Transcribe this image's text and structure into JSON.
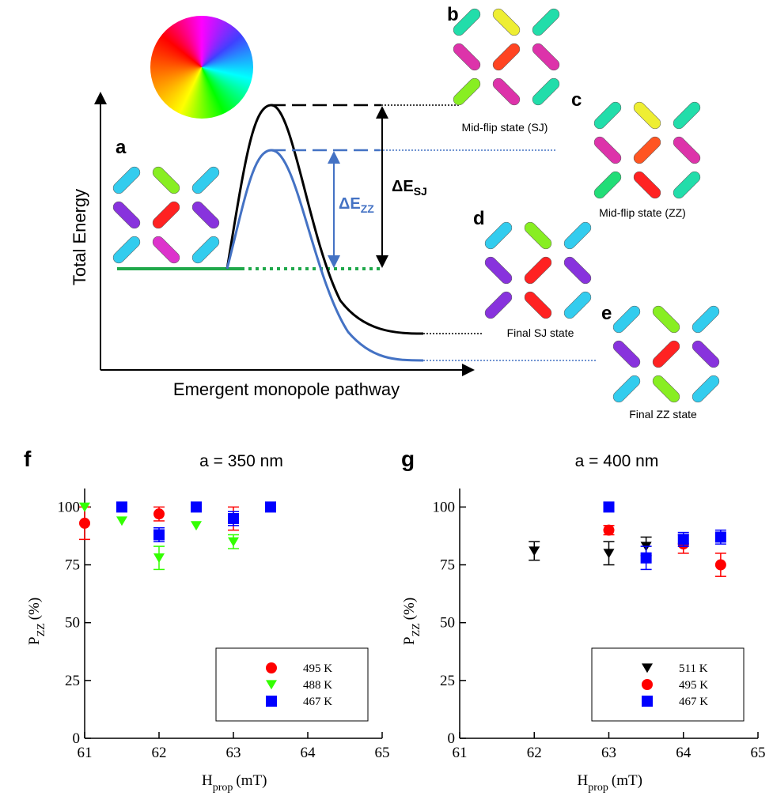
{
  "diagram": {
    "panel_labels": [
      "a",
      "b",
      "c",
      "d",
      "e"
    ],
    "y_axis_label": "Total Energy",
    "x_axis_label": "Emergent monopole pathway",
    "delta_sj": {
      "main": "ΔE",
      "sub": "SJ"
    },
    "delta_zz": {
      "main": "ΔE",
      "sub": "ZZ"
    },
    "captions": [
      "Mid-flip state (SJ)",
      "Mid-flip state (ZZ)",
      "Final SJ state",
      "Final ZZ state"
    ]
  },
  "chart_data": [
    {
      "type": "scatter",
      "panel": "f",
      "title": "a = 350 nm",
      "x_label": {
        "main": "H",
        "sub": "prop",
        "unit": "(mT)"
      },
      "y_label": {
        "main": "P",
        "sub": "ZZ",
        "unit": "(%)"
      },
      "xlim": [
        61,
        65
      ],
      "ylim": [
        0,
        108
      ],
      "xticks": [
        61,
        62,
        63,
        64,
        65
      ],
      "yticks": [
        0,
        25,
        50,
        75,
        100
      ],
      "legend": "lower right",
      "series": [
        {
          "name": "495 K",
          "color": "#ff0000",
          "marker": "circle",
          "x": [
            61,
            62,
            63
          ],
          "values": [
            93,
            97,
            95
          ],
          "errors": [
            7,
            3,
            5
          ]
        },
        {
          "name": "488 K",
          "color": "#33ff00",
          "marker": "triangle-down",
          "x": [
            61,
            61.5,
            62,
            62.5,
            63
          ],
          "values": [
            100,
            94,
            78,
            92,
            85
          ],
          "errors": [
            null,
            null,
            5,
            null,
            3
          ]
        },
        {
          "name": "467 K",
          "color": "#0000ff",
          "marker": "square",
          "x": [
            61.5,
            62,
            62.5,
            63,
            63.5
          ],
          "values": [
            100,
            88,
            100,
            95,
            100
          ],
          "errors": [
            null,
            3,
            null,
            3,
            null
          ]
        }
      ]
    },
    {
      "type": "scatter",
      "panel": "g",
      "title": "a = 400 nm",
      "x_label": {
        "main": "H",
        "sub": "prop",
        "unit": "(mT)"
      },
      "y_label": {
        "main": "P",
        "sub": "ZZ",
        "unit": "(%)"
      },
      "xlim": [
        61,
        65
      ],
      "ylim": [
        0,
        108
      ],
      "xticks": [
        61,
        62,
        63,
        64,
        65
      ],
      "yticks": [
        0,
        25,
        50,
        75,
        100
      ],
      "legend": "lower right",
      "series": [
        {
          "name": "511 K",
          "color": "#000000",
          "marker": "triangle-down",
          "x": [
            62,
            63,
            63.5
          ],
          "values": [
            81,
            80,
            83
          ],
          "errors": [
            4,
            5,
            4
          ]
        },
        {
          "name": "495 K",
          "color": "#ff0000",
          "marker": "circle",
          "x": [
            63,
            64,
            64.5
          ],
          "values": [
            90,
            84,
            75
          ],
          "errors": [
            2,
            4,
            5
          ]
        },
        {
          "name": "467 K",
          "color": "#0000ff",
          "marker": "square",
          "x": [
            63,
            63.5,
            64,
            64.5
          ],
          "values": [
            100,
            78,
            86,
            87
          ],
          "errors": [
            null,
            5,
            3,
            3
          ]
        }
      ]
    }
  ]
}
